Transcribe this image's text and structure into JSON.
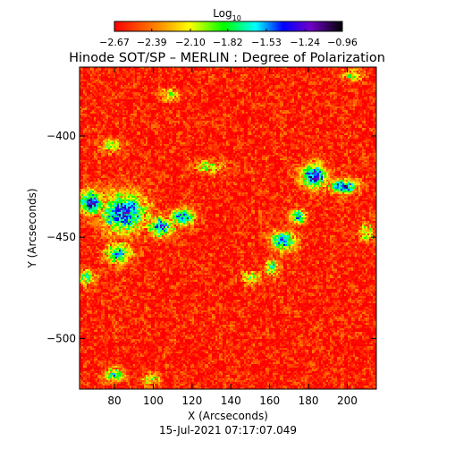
{
  "chart_data": {
    "type": "heatmap",
    "title": "Hinode SOT/SP – MERLIN : Degree of Polarization",
    "xlabel": "X (Arcseconds)",
    "ylabel": "Y (Arcseconds)",
    "timestamp": "15-Jul-2021 07:17:07.049",
    "xlim": [
      62,
      215
    ],
    "ylim": [
      -525,
      -366
    ],
    "x_ticks": [
      {
        "value": 80,
        "label": "80"
      },
      {
        "value": 100,
        "label": "100"
      },
      {
        "value": 120,
        "label": "120"
      },
      {
        "value": 140,
        "label": "140"
      },
      {
        "value": 160,
        "label": "160"
      },
      {
        "value": 180,
        "label": "180"
      },
      {
        "value": 200,
        "label": "200"
      }
    ],
    "y_ticks": [
      {
        "value": -400,
        "label": "−400"
      },
      {
        "value": -450,
        "label": "−450"
      },
      {
        "value": -500,
        "label": "−500"
      }
    ],
    "colorbar": {
      "label_base": "Log",
      "label_sub": "10",
      "colormap": "rainbow",
      "range": [
        -2.67,
        -0.96
      ],
      "ticks": [
        {
          "value": -2.67,
          "label": "−2.67"
        },
        {
          "value": -2.39,
          "label": "−2.39"
        },
        {
          "value": -2.1,
          "label": "−2.10"
        },
        {
          "value": -1.82,
          "label": "−1.82"
        },
        {
          "value": -1.53,
          "label": "−1.53"
        },
        {
          "value": -1.24,
          "label": "−1.24"
        },
        {
          "value": -0.96,
          "label": "−0.96"
        }
      ]
    },
    "background_level": -2.6,
    "regions": [
      {
        "x": 85,
        "y": -438,
        "rx": 14,
        "ry": 12,
        "level": -1.35
      },
      {
        "x": 68,
        "y": -433,
        "rx": 8,
        "ry": 7,
        "level": -1.3
      },
      {
        "x": 82,
        "y": -458,
        "rx": 8,
        "ry": 6,
        "level": -1.6
      },
      {
        "x": 104,
        "y": -445,
        "rx": 8,
        "ry": 6,
        "level": -1.5
      },
      {
        "x": 115,
        "y": -440,
        "rx": 8,
        "ry": 5,
        "level": -1.55
      },
      {
        "x": 183,
        "y": -420,
        "rx": 8,
        "ry": 7,
        "level": -1.3
      },
      {
        "x": 198,
        "y": -425,
        "rx": 9,
        "ry": 4,
        "level": -1.35
      },
      {
        "x": 167,
        "y": -452,
        "rx": 8,
        "ry": 6,
        "level": -1.5
      },
      {
        "x": 175,
        "y": -440,
        "rx": 5,
        "ry": 4,
        "level": -1.6
      },
      {
        "x": 78,
        "y": -405,
        "rx": 6,
        "ry": 4,
        "level": -1.9
      },
      {
        "x": 66,
        "y": -470,
        "rx": 5,
        "ry": 5,
        "level": -1.8
      },
      {
        "x": 80,
        "y": -518,
        "rx": 6,
        "ry": 4,
        "level": -1.7
      },
      {
        "x": 161,
        "y": -465,
        "rx": 4,
        "ry": 5,
        "level": -1.75
      },
      {
        "x": 203,
        "y": -370,
        "rx": 6,
        "ry": 4,
        "level": -2.0
      },
      {
        "x": 150,
        "y": -470,
        "rx": 6,
        "ry": 4,
        "level": -2.0
      },
      {
        "x": 128,
        "y": -415,
        "rx": 10,
        "ry": 4,
        "level": -2.0
      },
      {
        "x": 108,
        "y": -380,
        "rx": 6,
        "ry": 4,
        "level": -2.05
      },
      {
        "x": 210,
        "y": -448,
        "rx": 5,
        "ry": 5,
        "level": -2.0
      },
      {
        "x": 99,
        "y": -520,
        "rx": 5,
        "ry": 4,
        "level": -2.05
      }
    ]
  }
}
